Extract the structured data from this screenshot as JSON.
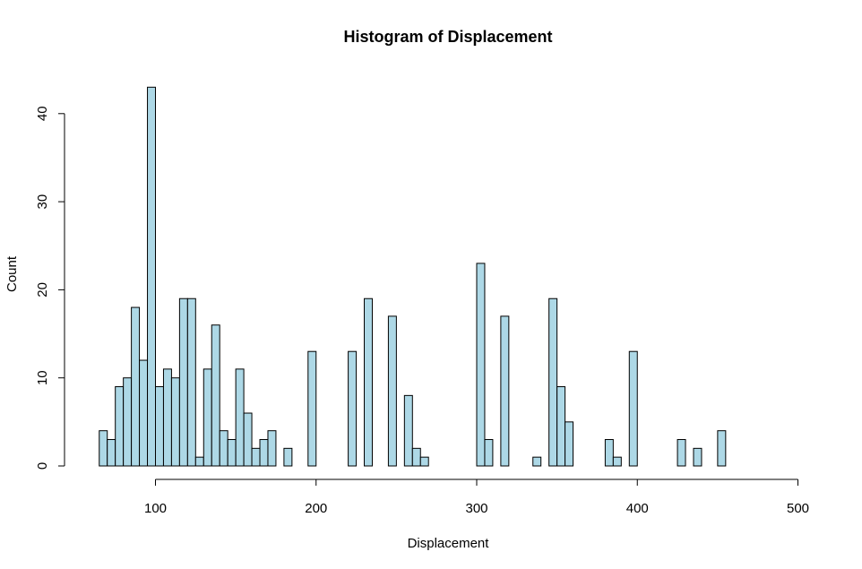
{
  "chart_data": {
    "type": "bar",
    "title": "Histogram of Displacement",
    "xlabel": "Displacement",
    "ylabel": "Count",
    "xlim": [
      60,
      500
    ],
    "ylim": [
      0,
      43
    ],
    "x_ticks": [
      100,
      200,
      300,
      400,
      500
    ],
    "y_ticks": [
      0,
      10,
      20,
      30,
      40
    ],
    "bar_color": "#add8e6",
    "edge_color": "#000000",
    "bin_width": 5,
    "grid": false,
    "bins": [
      {
        "x0": 65,
        "count": 4
      },
      {
        "x0": 70,
        "count": 3
      },
      {
        "x0": 75,
        "count": 9
      },
      {
        "x0": 80,
        "count": 10
      },
      {
        "x0": 85,
        "count": 18
      },
      {
        "x0": 90,
        "count": 12
      },
      {
        "x0": 95,
        "count": 43
      },
      {
        "x0": 100,
        "count": 9
      },
      {
        "x0": 105,
        "count": 11
      },
      {
        "x0": 110,
        "count": 10
      },
      {
        "x0": 115,
        "count": 19
      },
      {
        "x0": 120,
        "count": 19
      },
      {
        "x0": 125,
        "count": 1
      },
      {
        "x0": 130,
        "count": 11
      },
      {
        "x0": 135,
        "count": 16
      },
      {
        "x0": 140,
        "count": 4
      },
      {
        "x0": 145,
        "count": 3
      },
      {
        "x0": 150,
        "count": 11
      },
      {
        "x0": 155,
        "count": 6
      },
      {
        "x0": 160,
        "count": 2
      },
      {
        "x0": 165,
        "count": 3
      },
      {
        "x0": 170,
        "count": 4
      },
      {
        "x0": 175,
        "count": 0
      },
      {
        "x0": 180,
        "count": 2
      },
      {
        "x0": 185,
        "count": 0
      },
      {
        "x0": 190,
        "count": 0
      },
      {
        "x0": 195,
        "count": 13
      },
      {
        "x0": 200,
        "count": 0
      },
      {
        "x0": 205,
        "count": 0
      },
      {
        "x0": 210,
        "count": 0
      },
      {
        "x0": 215,
        "count": 0
      },
      {
        "x0": 220,
        "count": 13
      },
      {
        "x0": 225,
        "count": 0
      },
      {
        "x0": 230,
        "count": 19
      },
      {
        "x0": 235,
        "count": 0
      },
      {
        "x0": 240,
        "count": 0
      },
      {
        "x0": 245,
        "count": 17
      },
      {
        "x0": 250,
        "count": 0
      },
      {
        "x0": 255,
        "count": 8
      },
      {
        "x0": 260,
        "count": 2
      },
      {
        "x0": 265,
        "count": 1
      },
      {
        "x0": 270,
        "count": 0
      },
      {
        "x0": 275,
        "count": 0
      },
      {
        "x0": 280,
        "count": 0
      },
      {
        "x0": 285,
        "count": 0
      },
      {
        "x0": 290,
        "count": 0
      },
      {
        "x0": 295,
        "count": 0
      },
      {
        "x0": 300,
        "count": 23
      },
      {
        "x0": 305,
        "count": 3
      },
      {
        "x0": 310,
        "count": 0
      },
      {
        "x0": 315,
        "count": 17
      },
      {
        "x0": 320,
        "count": 0
      },
      {
        "x0": 325,
        "count": 0
      },
      {
        "x0": 330,
        "count": 0
      },
      {
        "x0": 335,
        "count": 1
      },
      {
        "x0": 340,
        "count": 0
      },
      {
        "x0": 345,
        "count": 19
      },
      {
        "x0": 350,
        "count": 9
      },
      {
        "x0": 355,
        "count": 5
      },
      {
        "x0": 360,
        "count": 0
      },
      {
        "x0": 365,
        "count": 0
      },
      {
        "x0": 370,
        "count": 0
      },
      {
        "x0": 375,
        "count": 0
      },
      {
        "x0": 380,
        "count": 3
      },
      {
        "x0": 385,
        "count": 1
      },
      {
        "x0": 390,
        "count": 0
      },
      {
        "x0": 395,
        "count": 13
      },
      {
        "x0": 400,
        "count": 0
      },
      {
        "x0": 405,
        "count": 0
      },
      {
        "x0": 410,
        "count": 0
      },
      {
        "x0": 415,
        "count": 0
      },
      {
        "x0": 420,
        "count": 0
      },
      {
        "x0": 425,
        "count": 3
      },
      {
        "x0": 430,
        "count": 0
      },
      {
        "x0": 435,
        "count": 2
      },
      {
        "x0": 440,
        "count": 0
      },
      {
        "x0": 445,
        "count": 0
      },
      {
        "x0": 450,
        "count": 4
      }
    ]
  }
}
